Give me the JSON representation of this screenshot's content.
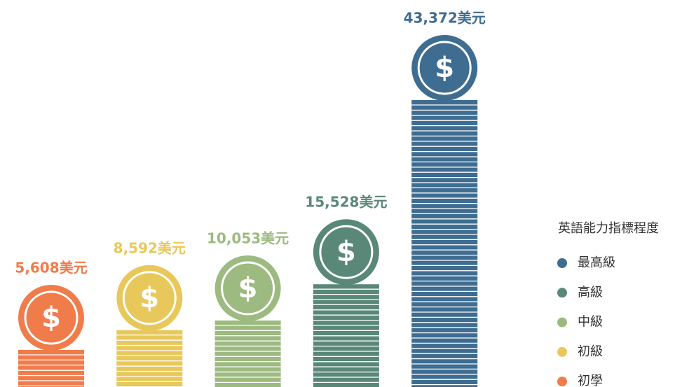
{
  "chart_data": {
    "type": "bar",
    "categories": [
      "初學",
      "初級",
      "中級",
      "高級",
      "最高級"
    ],
    "values": [
      5608,
      8592,
      10053,
      15528,
      43372
    ],
    "value_labels": [
      "5,608美元",
      "8,592美元",
      "10,053美元",
      "15,528美元",
      "43,372美元"
    ],
    "colors": [
      "#f07c4b",
      "#e8c85a",
      "#9dba80",
      "#5a8878",
      "#3f6d91"
    ],
    "coin_symbol": "$",
    "legend_title": "英語能力指標程度",
    "legend": "right"
  }
}
